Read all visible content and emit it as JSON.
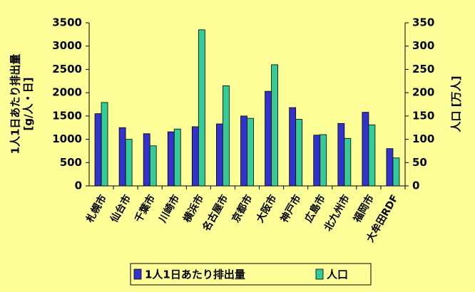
{
  "chart_data": {
    "type": "bar",
    "y_label": "1人1日あたり排出量",
    "y_label_unit": "[g/人・日]",
    "y2_label": "人口 [万人]",
    "categories": [
      "札幌市",
      "仙台市",
      "千葉市",
      "川崎市",
      "横浜市",
      "名古屋市",
      "京都市",
      "大阪市",
      "神戸市",
      "広島市",
      "北九州市",
      "福岡市",
      "大牟田RDF"
    ],
    "series": [
      {
        "name": "1人1日あたり排出量",
        "color": "#3333cc",
        "values": [
          1550,
          1250,
          1120,
          1160,
          1270,
          1330,
          1500,
          2030,
          1680,
          1090,
          1340,
          1580,
          800
        ]
      },
      {
        "name": "人口",
        "color": "#33cc99",
        "axis": "y2",
        "values": [
          179,
          100,
          86,
          122,
          335,
          215,
          145,
          260,
          143,
          110,
          102,
          131,
          60
        ]
      }
    ],
    "ylim": [
      0,
      3500
    ],
    "yticks": [
      0,
      500,
      1000,
      1500,
      2000,
      2500,
      3000,
      3500
    ],
    "y2lim": [
      0,
      350
    ],
    "y2ticks": [
      0,
      50,
      100,
      150,
      200,
      250,
      300,
      350
    ],
    "legend": "bottom"
  }
}
